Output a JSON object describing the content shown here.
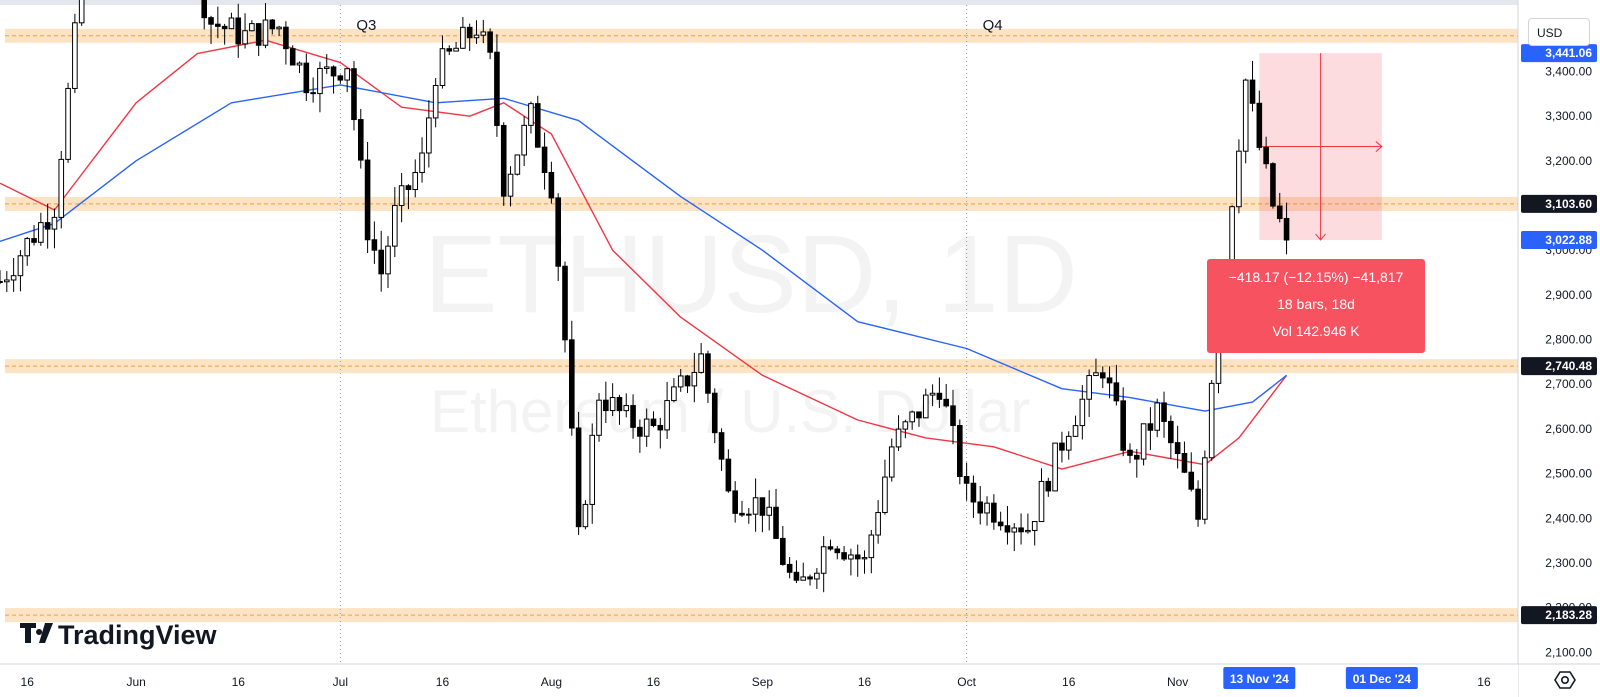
{
  "header": {
    "currency_label": "USD",
    "icons": [
      "settings-icon"
    ]
  },
  "watermark": {
    "symbol": "ETHUSD, 1D",
    "description": "Ethereum / U.S. Dollar"
  },
  "logo": {
    "text": "TradingView"
  },
  "quarters": [
    {
      "label": "Q3",
      "date": "2024-07-01"
    },
    {
      "label": "Q4",
      "date": "2024-10-01"
    }
  ],
  "colors": {
    "up_candle": "#ffffff",
    "down_candle": "#000000",
    "sma_red": "#f23645",
    "sma_blue": "#2962ff",
    "zone_fill": "#fbe3c3",
    "zone_line": "#e8a24a",
    "measure_fill": "#f7525f",
    "axis_badge": "#2962ff"
  },
  "measurement": {
    "line1": "−418.17 (−12.15%) −41,817",
    "line2": "18 bars, 18d",
    "line3": "Vol 142.946 K",
    "start_date": "2024-11-13",
    "end_date": "2024-12-01",
    "start_price": 3441.06,
    "end_price": 3022.88
  },
  "price_badges": [
    {
      "value": 3441.06,
      "label": "3,441.06",
      "style": "blue"
    },
    {
      "value": 3103.6,
      "label": "3,103.60",
      "style": "dark"
    },
    {
      "value": 3022.88,
      "label": "3,022.88",
      "style": "blue"
    },
    {
      "value": 2740.48,
      "label": "2,740.48",
      "style": "dark"
    },
    {
      "value": 2183.28,
      "label": "2,183.28",
      "style": "dark"
    }
  ],
  "time_badges": [
    {
      "label": "13 Nov '24",
      "date": "2024-11-13"
    },
    {
      "label": "01 Dec '24",
      "date": "2024-12-01"
    }
  ],
  "chart_data": {
    "type": "candlestick",
    "symbol": "ETHUSD",
    "interval": "1D",
    "ylim": [
      2000,
      3560
    ],
    "xlim": [
      "2024-05-12",
      "2024-12-21"
    ],
    "y_ticks": [
      2100,
      2200,
      2300,
      2400,
      2500,
      2600,
      2700,
      2800,
      2900,
      3000,
      3100,
      3200,
      3300,
      3400
    ],
    "y_tick_labels": [
      "2,100.00",
      "2,200.00",
      "2,300.00",
      "2,400.00",
      "2,500.00",
      "2,600.00",
      "2,700.00",
      "2,800.00",
      "2,900.00",
      "3,000.00",
      "3,100.00",
      "3,200.00",
      "3,300.00",
      "3,400.00"
    ],
    "x_ticks": [
      {
        "label": "16",
        "date": "2024-05-16"
      },
      {
        "label": "Jun",
        "date": "2024-06-01"
      },
      {
        "label": "16",
        "date": "2024-06-16"
      },
      {
        "label": "Jul",
        "date": "2024-07-01"
      },
      {
        "label": "16",
        "date": "2024-07-16"
      },
      {
        "label": "Aug",
        "date": "2024-08-01"
      },
      {
        "label": "16",
        "date": "2024-08-16"
      },
      {
        "label": "Sep",
        "date": "2024-09-01"
      },
      {
        "label": "16",
        "date": "2024-09-16"
      },
      {
        "label": "Oct",
        "date": "2024-10-01"
      },
      {
        "label": "16",
        "date": "2024-10-16"
      },
      {
        "label": "Nov",
        "date": "2024-11-01"
      },
      {
        "label": "16",
        "date": "2024-11-16"
      },
      {
        "label": "16",
        "date": "2024-12-16"
      }
    ],
    "zones": [
      3480,
      3103.6,
      2740.48,
      2183.28
    ],
    "closes": [
      {
        "date": "2024-05-12",
        "close": 2930
      },
      {
        "date": "2024-05-20",
        "close": 3100
      },
      {
        "date": "2024-05-26",
        "close": 3850
      },
      {
        "date": "2024-06-01",
        "close": 3780
      },
      {
        "date": "2024-06-08",
        "close": 3690
      },
      {
        "date": "2024-06-12",
        "close": 3510
      },
      {
        "date": "2024-06-17",
        "close": 3480
      },
      {
        "date": "2024-06-22",
        "close": 3500
      },
      {
        "date": "2024-06-26",
        "close": 3380
      },
      {
        "date": "2024-06-30",
        "close": 3400
      },
      {
        "date": "2024-07-02",
        "close": 3420
      },
      {
        "date": "2024-07-05",
        "close": 3050
      },
      {
        "date": "2024-07-07",
        "close": 2950
      },
      {
        "date": "2024-07-09",
        "close": 3080
      },
      {
        "date": "2024-07-13",
        "close": 3200
      },
      {
        "date": "2024-07-15",
        "close": 3400
      },
      {
        "date": "2024-07-18",
        "close": 3450
      },
      {
        "date": "2024-07-21",
        "close": 3500
      },
      {
        "date": "2024-07-23",
        "close": 3420
      },
      {
        "date": "2024-07-25",
        "close": 3150
      },
      {
        "date": "2024-07-29",
        "close": 3300
      },
      {
        "date": "2024-08-01",
        "close": 3150
      },
      {
        "date": "2024-08-03",
        "close": 2800
      },
      {
        "date": "2024-08-05",
        "close": 2350
      },
      {
        "date": "2024-08-08",
        "close": 2680
      },
      {
        "date": "2024-08-12",
        "close": 2620
      },
      {
        "date": "2024-08-16",
        "close": 2600
      },
      {
        "date": "2024-08-23",
        "close": 2760
      },
      {
        "date": "2024-08-27",
        "close": 2450
      },
      {
        "date": "2024-09-01",
        "close": 2430
      },
      {
        "date": "2024-09-06",
        "close": 2230
      },
      {
        "date": "2024-09-11",
        "close": 2360
      },
      {
        "date": "2024-09-16",
        "close": 2300
      },
      {
        "date": "2024-09-20",
        "close": 2560
      },
      {
        "date": "2024-09-27",
        "close": 2700
      },
      {
        "date": "2024-10-01",
        "close": 2450
      },
      {
        "date": "2024-10-05",
        "close": 2420
      },
      {
        "date": "2024-10-10",
        "close": 2380
      },
      {
        "date": "2024-10-16",
        "close": 2610
      },
      {
        "date": "2024-10-21",
        "close": 2740
      },
      {
        "date": "2024-10-25",
        "close": 2520
      },
      {
        "date": "2024-10-29",
        "close": 2640
      },
      {
        "date": "2024-11-02",
        "close": 2490
      },
      {
        "date": "2024-11-04",
        "close": 2400
      },
      {
        "date": "2024-11-06",
        "close": 2720
      },
      {
        "date": "2024-11-09",
        "close": 3120
      },
      {
        "date": "2024-11-11",
        "close": 3380
      },
      {
        "date": "2024-11-13",
        "close": 3230
      },
      {
        "date": "2024-11-15",
        "close": 3100
      },
      {
        "date": "2024-11-17",
        "close": 3022.88
      }
    ],
    "series": [
      {
        "name": "",
        "color": "#f23645",
        "points": [
          {
            "date": "2024-05-12",
            "value": 3150
          },
          {
            "date": "2024-05-20",
            "value": 3090
          },
          {
            "date": "2024-06-01",
            "value": 3330
          },
          {
            "date": "2024-06-10",
            "value": 3440
          },
          {
            "date": "2024-06-20",
            "value": 3470
          },
          {
            "date": "2024-07-01",
            "value": 3420
          },
          {
            "date": "2024-07-10",
            "value": 3320
          },
          {
            "date": "2024-07-20",
            "value": 3300
          },
          {
            "date": "2024-07-25",
            "value": 3330
          },
          {
            "date": "2024-08-01",
            "value": 3260
          },
          {
            "date": "2024-08-10",
            "value": 3000
          },
          {
            "date": "2024-08-20",
            "value": 2850
          },
          {
            "date": "2024-09-01",
            "value": 2720
          },
          {
            "date": "2024-09-15",
            "value": 2620
          },
          {
            "date": "2024-09-25",
            "value": 2580
          },
          {
            "date": "2024-10-05",
            "value": 2560
          },
          {
            "date": "2024-10-15",
            "value": 2510
          },
          {
            "date": "2024-10-25",
            "value": 2550
          },
          {
            "date": "2024-11-05",
            "value": 2520
          },
          {
            "date": "2024-11-10",
            "value": 2580
          },
          {
            "date": "2024-11-17",
            "value": 2720
          }
        ]
      },
      {
        "name": "",
        "color": "#2962ff",
        "points": [
          {
            "date": "2024-05-12",
            "value": 3020
          },
          {
            "date": "2024-05-20",
            "value": 3060
          },
          {
            "date": "2024-06-01",
            "value": 3200
          },
          {
            "date": "2024-06-15",
            "value": 3330
          },
          {
            "date": "2024-07-01",
            "value": 3370
          },
          {
            "date": "2024-07-15",
            "value": 3330
          },
          {
            "date": "2024-07-25",
            "value": 3340
          },
          {
            "date": "2024-08-05",
            "value": 3290
          },
          {
            "date": "2024-08-20",
            "value": 3120
          },
          {
            "date": "2024-09-01",
            "value": 3000
          },
          {
            "date": "2024-09-15",
            "value": 2840
          },
          {
            "date": "2024-10-01",
            "value": 2780
          },
          {
            "date": "2024-10-15",
            "value": 2690
          },
          {
            "date": "2024-10-25",
            "value": 2670
          },
          {
            "date": "2024-11-05",
            "value": 2640
          },
          {
            "date": "2024-11-12",
            "value": 2660
          },
          {
            "date": "2024-11-17",
            "value": 2720
          }
        ]
      }
    ]
  }
}
